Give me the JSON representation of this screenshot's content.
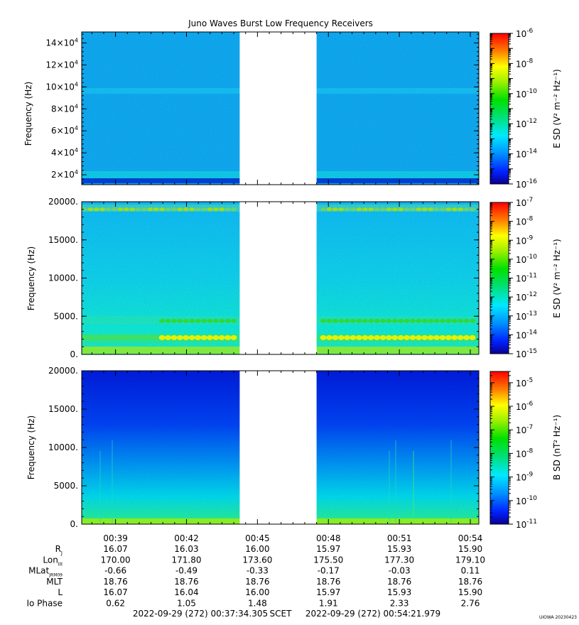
{
  "chart_data": [
    {
      "type": "heatmap",
      "title": "Juno Waves Burst Low Frequency Receivers",
      "ylabel": "Frequency (Hz)",
      "ylim": [
        11000,
        150000
      ],
      "yticks": [
        20000,
        40000,
        60000,
        80000,
        100000,
        120000,
        140000
      ],
      "ytick_labels": [
        {
          "base": "2×10",
          "exp": "4"
        },
        {
          "base": "4×10",
          "exp": "4"
        },
        {
          "base": "6×10",
          "exp": "4"
        },
        {
          "base": "8×10",
          "exp": "4"
        },
        {
          "base": "10×10",
          "exp": "4"
        },
        {
          "base": "12×10",
          "exp": "4"
        },
        {
          "base": "14×10",
          "exp": "4"
        }
      ],
      "colorbar": {
        "label": "E SD (V² m⁻² Hz⁻¹)",
        "scale": "log",
        "range": [
          1e-16,
          1e-06
        ],
        "tick_exponents": [
          -6,
          -8,
          -10,
          -12,
          -14,
          -16
        ]
      },
      "data_gap_minutes": [
        44.25,
        47.5
      ],
      "features": [
        {
          "type": "band",
          "freq": 20000,
          "level": "green"
        },
        {
          "type": "band",
          "freq": 97000,
          "level": "cyan"
        },
        {
          "type": "band",
          "freq": 12000,
          "level": "blue"
        }
      ]
    },
    {
      "type": "heatmap",
      "ylabel": "Frequency (Hz)",
      "ylim": [
        0,
        20000
      ],
      "yticks": [
        0,
        5000,
        10000,
        15000,
        20000
      ],
      "ytick_labels": [
        "0.",
        "5000.",
        "10000.",
        "15000.",
        "20000."
      ],
      "colorbar": {
        "label": "E SD (V² m⁻² Hz⁻¹)",
        "scale": "log",
        "range": [
          1e-15,
          1e-07
        ],
        "tick_exponents": [
          -7,
          -8,
          -9,
          -10,
          -11,
          -12,
          -13,
          -14,
          -15
        ]
      },
      "data_gap_minutes": [
        44.25,
        47.5
      ],
      "features": [
        {
          "type": "band",
          "freq": 2200,
          "level": "yellow"
        },
        {
          "type": "band",
          "freq": 4400,
          "level": "green"
        },
        {
          "type": "band",
          "freq": 19000,
          "level": "yellow-green"
        },
        {
          "type": "band",
          "freq": 500,
          "level": "green"
        }
      ]
    },
    {
      "type": "heatmap",
      "ylabel": "Frequency (Hz)",
      "ylim": [
        0,
        20000
      ],
      "yticks": [
        0,
        5000,
        10000,
        15000,
        20000
      ],
      "ytick_labels": [
        "0.",
        "5000.",
        "10000.",
        "15000.",
        "20000."
      ],
      "colorbar": {
        "label": "B SD (nT² Hz⁻¹)",
        "scale": "log",
        "range": [
          1e-11,
          3e-05
        ],
        "tick_exponents": [
          -5,
          -6,
          -7,
          -8,
          -9,
          -10,
          -11
        ]
      },
      "data_gap_minutes": [
        44.25,
        47.5
      ],
      "xlim_minutes": [
        37.57,
        54.36
      ],
      "xticks": [
        {
          "label": "00:39",
          "minute": 39
        },
        {
          "label": "00:42",
          "minute": 42
        },
        {
          "label": "00:45",
          "minute": 45
        },
        {
          "label": "00:48",
          "minute": 48
        },
        {
          "label": "00:51",
          "minute": 51
        },
        {
          "label": "00:54",
          "minute": 54
        }
      ]
    }
  ],
  "ephemeris": {
    "rows": [
      {
        "name": "R",
        "sub": "J",
        "values": [
          "16.07",
          "16.03",
          "16.00",
          "15.97",
          "15.93",
          "15.90"
        ]
      },
      {
        "name": "Lon",
        "sub": "III",
        "values": [
          "170.00",
          "171.80",
          "173.60",
          "175.50",
          "177.30",
          "179.10"
        ]
      },
      {
        "name": "MLat",
        "sub": "JRM09",
        "values": [
          "-0.66",
          "-0.49",
          "-0.33",
          "-0.17",
          "-0.03",
          "0.11"
        ]
      },
      {
        "name": "MLT",
        "sub": "",
        "values": [
          "18.76",
          "18.76",
          "18.76",
          "18.76",
          "18.76",
          "18.76"
        ]
      },
      {
        "name": "L",
        "sub": "",
        "values": [
          "16.07",
          "16.04",
          "16.00",
          "15.97",
          "15.93",
          "15.90"
        ]
      },
      {
        "name": "Io Phase",
        "sub": "",
        "values": [
          "0.62",
          "1.05",
          "1.48",
          "1.91",
          "2.33",
          "2.76"
        ]
      }
    ]
  },
  "footer": {
    "start": "2022-09-29 (272) 00:37:34.305",
    "scet": "SCET",
    "end": "2022-09-29 (272) 00:54:21.979",
    "credit": "UIOWA 20230423"
  }
}
